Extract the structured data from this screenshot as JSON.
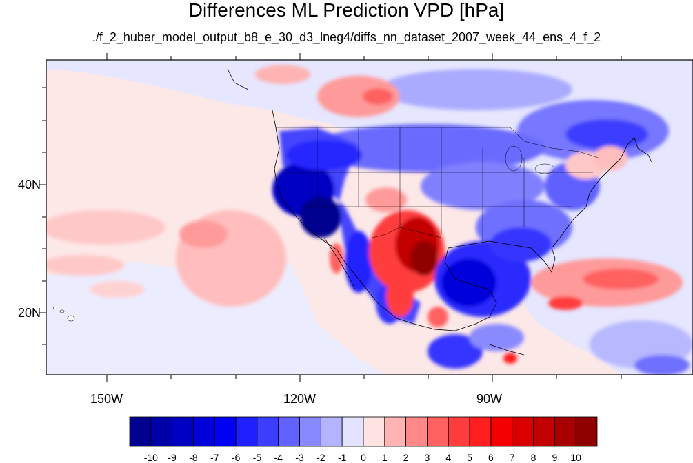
{
  "title": "Differences ML Prediction VPD [hPa]",
  "subtitle": "./f_2_huber_model_output_b8_e_30_d3_lneg4/diffs_nn_dataset_2007_week_44_ens_4_f_2",
  "axes": {
    "lat_labels": [
      "40N",
      "20N"
    ],
    "lon_labels": [
      "150W",
      "120W",
      "90W"
    ]
  },
  "colorbar": {
    "labels": [
      "-10",
      "-9",
      "-8",
      "-7",
      "-6",
      "-5",
      "-4",
      "-3",
      "-2",
      "-1",
      "0",
      "1",
      "2",
      "3",
      "4",
      "5",
      "6",
      "7",
      "8",
      "9",
      "10"
    ],
    "colors": [
      "#00008f",
      "#0000a8",
      "#0000c2",
      "#0000db",
      "#0000f5",
      "#1f1fff",
      "#3d3dff",
      "#6161ff",
      "#8888ff",
      "#b3b3ff",
      "#e3e3ff",
      "#ffe3e3",
      "#ffb3b3",
      "#ff8888",
      "#ff6161",
      "#ff3d3d",
      "#ff1f1f",
      "#f50000",
      "#db0000",
      "#c20000",
      "#a80000",
      "#8f0000"
    ]
  },
  "colors": {
    "ocean_neutral": "#fdeaea",
    "land_neutral": "#ececff",
    "coastline": "#000000"
  }
}
